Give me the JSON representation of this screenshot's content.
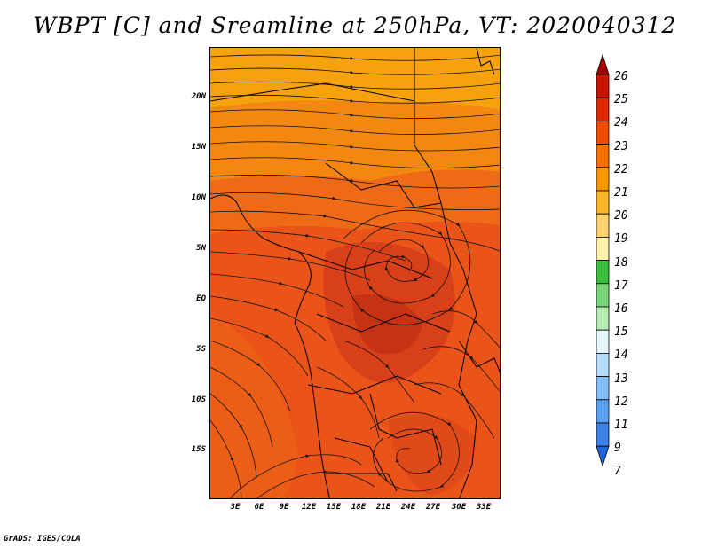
{
  "title": "WBPT [C] and Sreamline at 250hPa, VT: 2020040312",
  "credit": "GrADS: IGES/COLA",
  "lat_labels": [
    "20N",
    "15N",
    "10N",
    "5N",
    "EQ",
    "5S",
    "10S",
    "15S"
  ],
  "lon_labels": [
    "3E",
    "6E",
    "9E",
    "12E",
    "15E",
    "18E",
    "21E",
    "24E",
    "27E",
    "30E",
    "33E"
  ],
  "colorbar": {
    "levels": [
      "26",
      "25",
      "24",
      "23",
      "22",
      "21",
      "20",
      "19",
      "18",
      "17",
      "16",
      "15",
      "14",
      "13",
      "12",
      "11",
      "9",
      "7"
    ],
    "colors": [
      "#a50000",
      "#c81400",
      "#e02800",
      "#f04c00",
      "#f87000",
      "#fa9600",
      "#fcb428",
      "#fdd26e",
      "#fff0aa",
      "#3cbe3c",
      "#78d678",
      "#b4ecb4",
      "#e6f6ff",
      "#b4dcff",
      "#82bef8",
      "#5aa0f0",
      "#3c82e6",
      "#1e64dc"
    ]
  },
  "field_colors": {
    "low": "#e8501a",
    "mid": "#ee6018",
    "high": "#f48a10",
    "north": "#f7a20c",
    "core": "#c63214"
  }
}
